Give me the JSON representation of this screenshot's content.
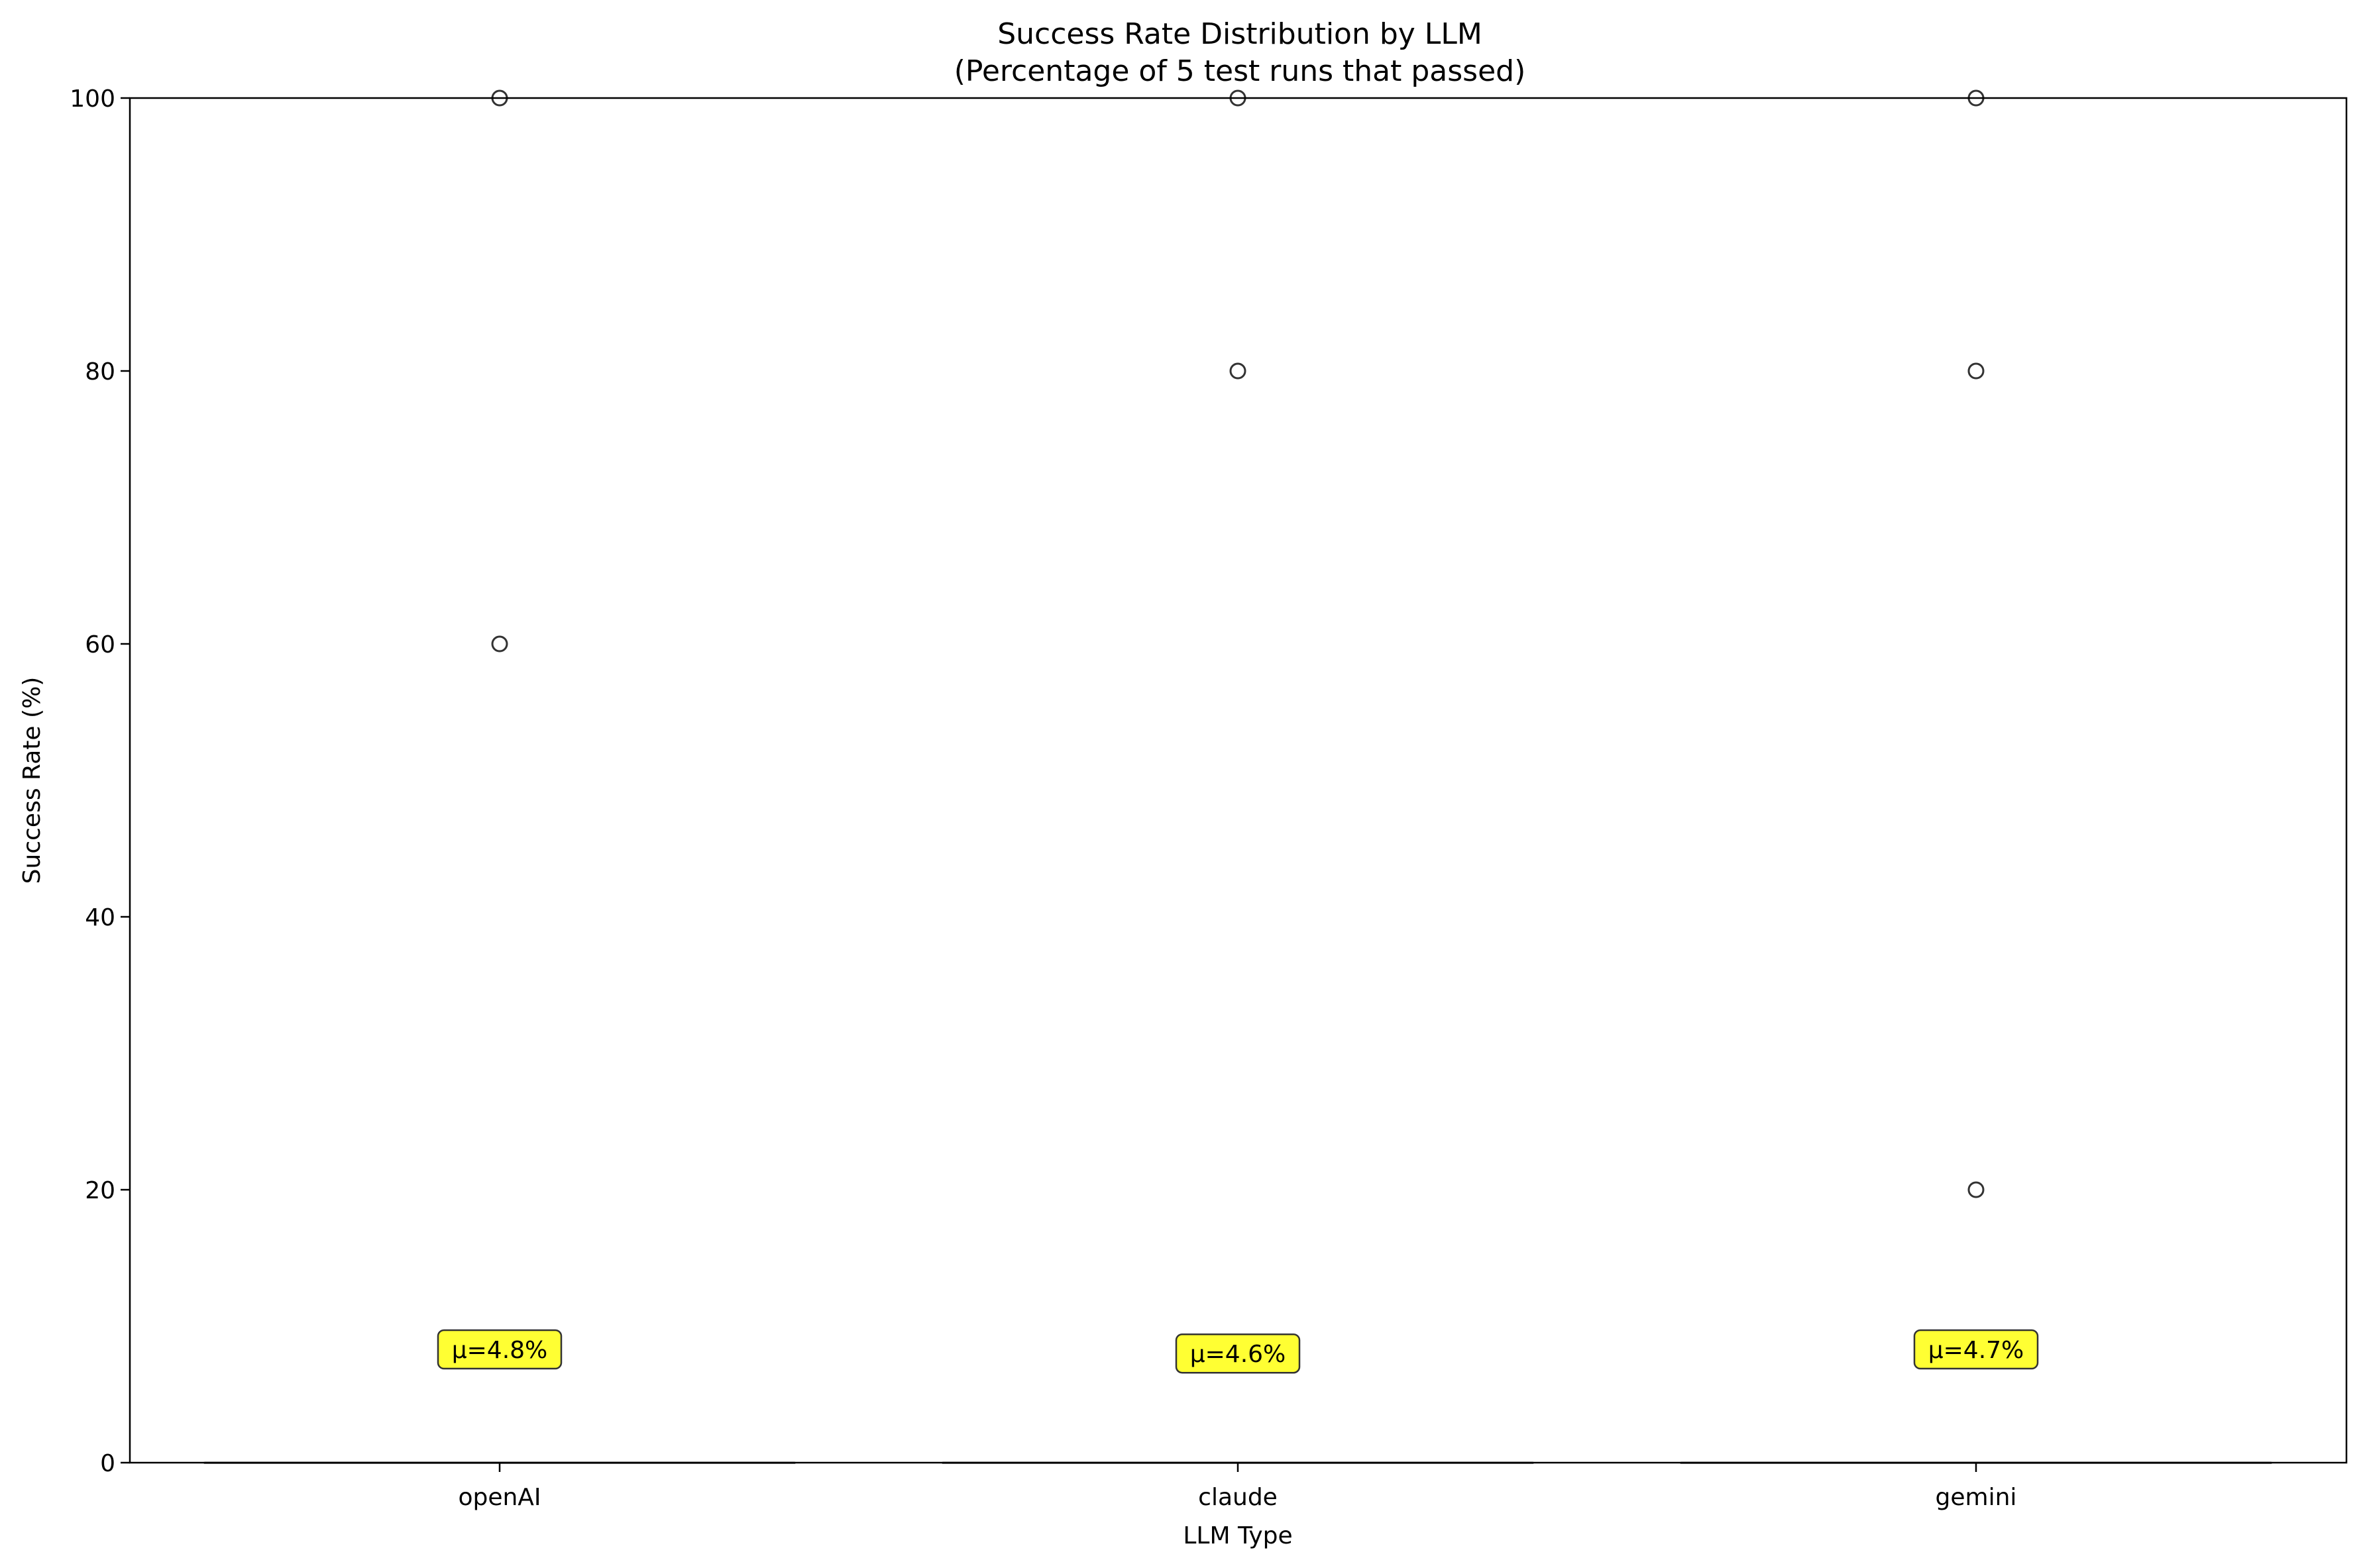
{
  "chart_data": {
    "type": "box",
    "title": "Success Rate Distribution by LLM",
    "subtitle": "(Percentage of 5 test runs that passed)",
    "xlabel": "LLM Type",
    "ylabel": "Success Rate (%)",
    "categories": [
      "openAI",
      "claude",
      "gemini"
    ],
    "ylim": [
      0,
      100
    ],
    "yticks": [
      0,
      20,
      40,
      60,
      80,
      100
    ],
    "ytick_labels": [
      "0",
      "20",
      "40",
      "60",
      "80",
      "100"
    ],
    "grid": false,
    "boxes": [
      {
        "category": "openAI",
        "median": 0,
        "q1": 0,
        "q3": 0,
        "whisker_low": 0,
        "whisker_high": 0,
        "outliers": [
          60,
          100
        ]
      },
      {
        "category": "claude",
        "median": 0,
        "q1": 0,
        "q3": 0,
        "whisker_low": 0,
        "whisker_high": 0,
        "outliers": [
          80,
          100
        ]
      },
      {
        "category": "gemini",
        "median": 0,
        "q1": 0,
        "q3": 0,
        "whisker_low": 0,
        "whisker_high": 0,
        "outliers": [
          20,
          80,
          100
        ]
      }
    ],
    "annotations": [
      {
        "category": "openAI",
        "text": "μ=4.8%",
        "y": 8.3
      },
      {
        "category": "claude",
        "text": "μ=4.6%",
        "y": 8.0
      },
      {
        "category": "gemini",
        "text": "μ=4.7%",
        "y": 8.3
      }
    ],
    "colors": {
      "box_line": "#333333",
      "outlier_edge": "#333333",
      "annotation_fill": "#ffff33",
      "annotation_edge": "#333333"
    }
  }
}
